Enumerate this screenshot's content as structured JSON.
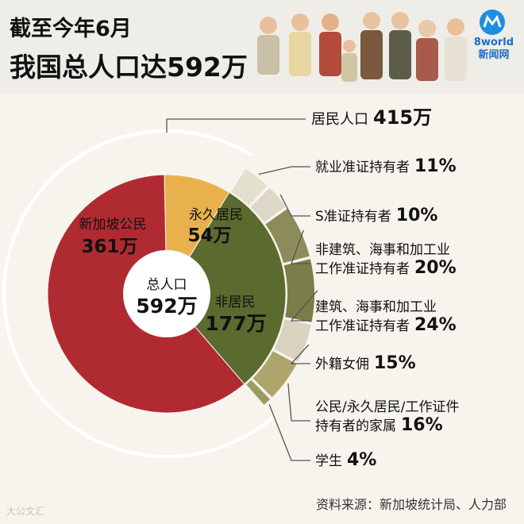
{
  "header": {
    "title_line1": "截至今年6月",
    "title_line2": "我国总人口达592万",
    "logo_text_1": "8world",
    "logo_text_2": "新闻网"
  },
  "source": "资料来源：新加坡统计局、人力部",
  "watermark": "大公文汇",
  "colors": {
    "citizens": "#b02a32",
    "pr": "#e8b14d",
    "non_residents": "#5b6a2e",
    "ring": [
      "#e4e0cf",
      "#ddd7c8",
      "#8b8c5a",
      "#7b7d48",
      "#d8d2bf",
      "#aea56b",
      "#9a9d60"
    ]
  },
  "chart_data": {
    "type": "pie",
    "title": "截至今年6月我国总人口达592万",
    "total": {
      "label": "总人口",
      "value": "592万"
    },
    "inner": [
      {
        "name": "新加坡公民",
        "value": 361,
        "display": "361万"
      },
      {
        "name": "永久居民",
        "value": 54,
        "display": "54万"
      },
      {
        "name": "非居民",
        "value": 177,
        "display": "177万"
      }
    ],
    "resident_total": {
      "label": "居民人口",
      "value": "415万"
    },
    "non_resident_breakdown": [
      {
        "label": "就业准证持有者",
        "value": 11,
        "display": "11%"
      },
      {
        "label": "S准证持有者",
        "value": 10,
        "display": "10%"
      },
      {
        "label": "非建筑、海事和加工业\n工作准证持有者",
        "value": 20,
        "display": "20%"
      },
      {
        "label": "建筑、海事和加工业\n工作准证持有者",
        "value": 24,
        "display": "24%"
      },
      {
        "label": "外籍女佣",
        "value": 15,
        "display": "15%"
      },
      {
        "label": "公民/永久居民/工作证件\n持有者的家属",
        "value": 16,
        "display": "16%"
      },
      {
        "label": "学生",
        "value": 4,
        "display": "4%"
      }
    ]
  }
}
